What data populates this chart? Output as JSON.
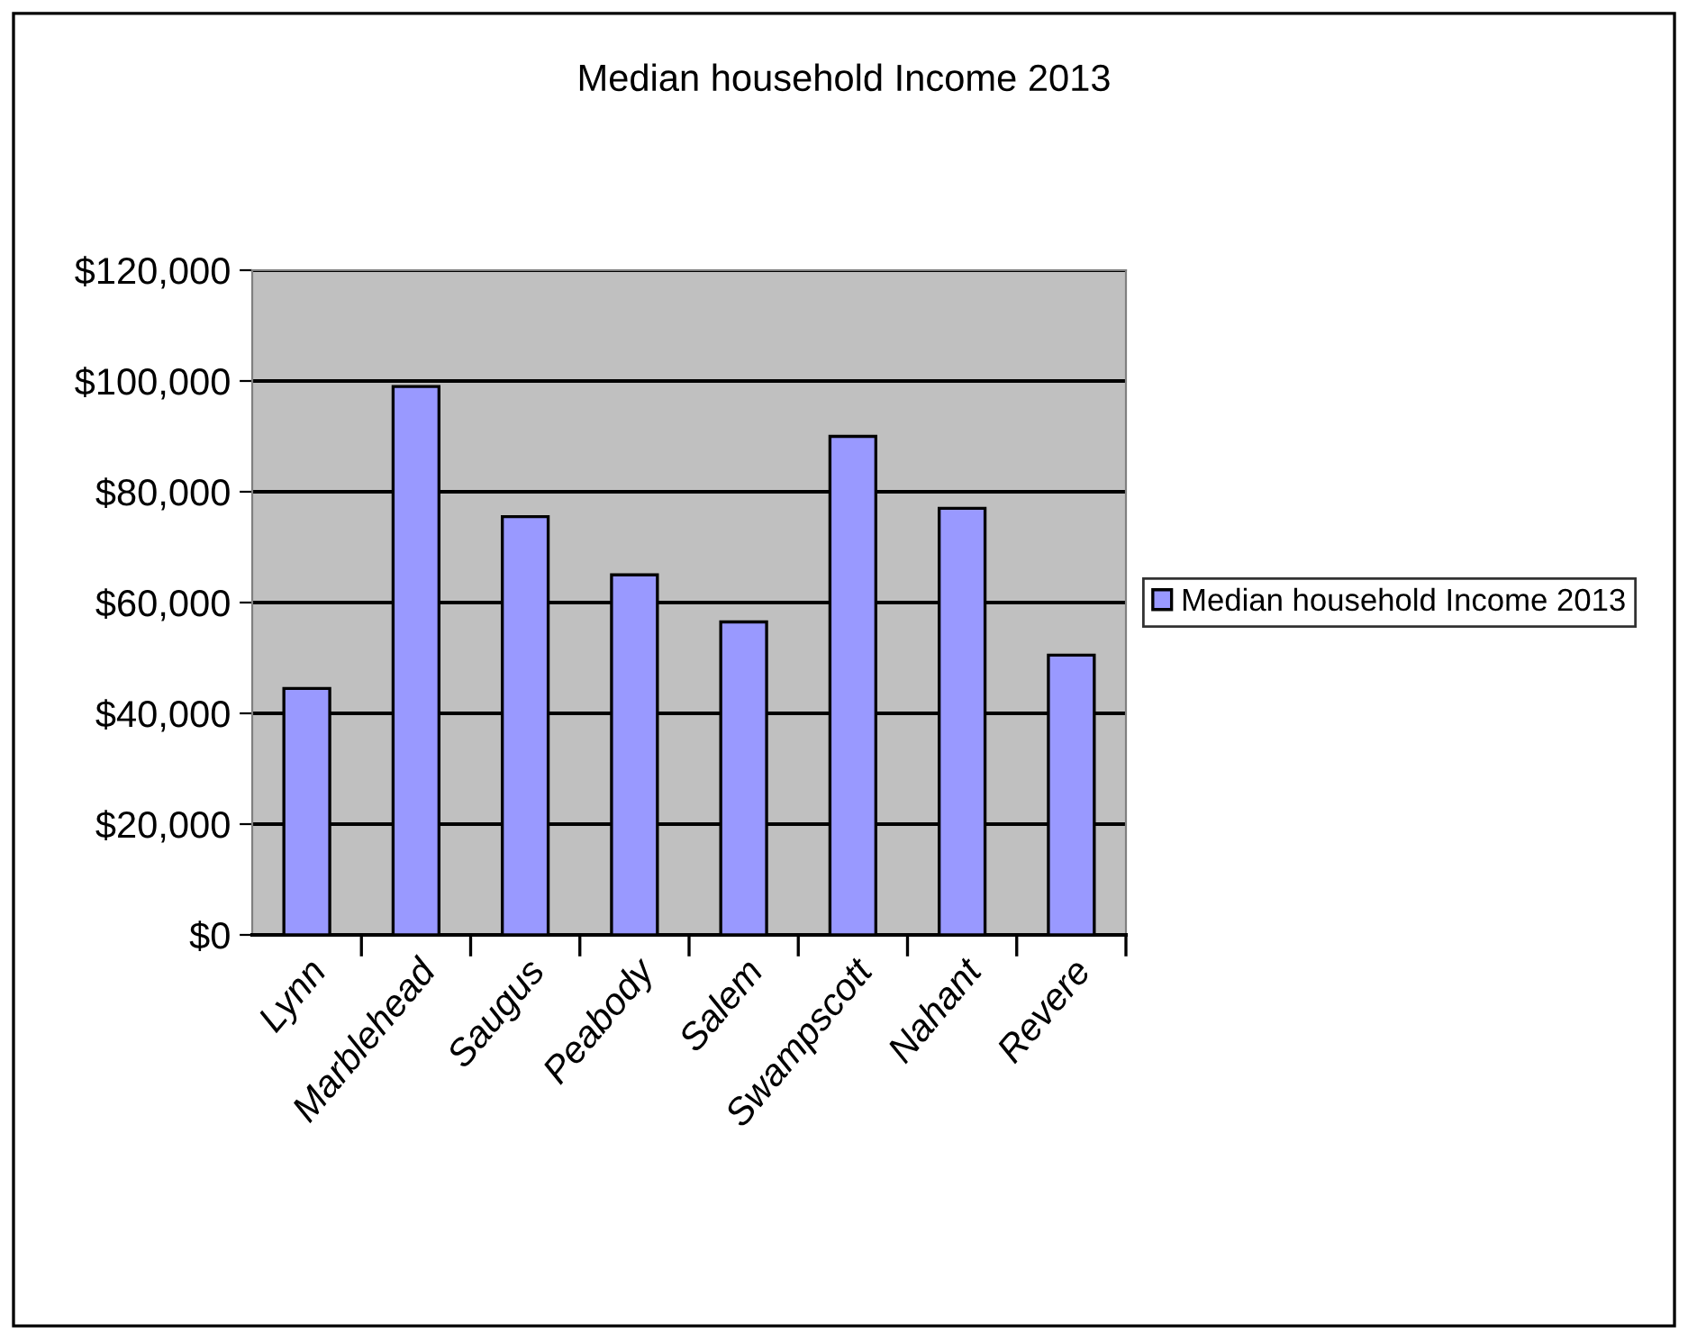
{
  "chart_data": {
    "type": "bar",
    "title": "Median household Income 2013",
    "categories": [
      "Lynn",
      "Marblehead",
      "Saugus",
      "Peabody",
      "Salem",
      "Swampscott",
      "Nahant",
      "Revere"
    ],
    "series": [
      {
        "name": "Median household Income 2013",
        "color": "#9999ff",
        "values": [
          44500,
          99000,
          75500,
          65000,
          56500,
          90000,
          77000,
          50500
        ]
      }
    ],
    "ylim": [
      0,
      120000
    ],
    "yticks": [
      {
        "value": 0,
        "label": "$0"
      },
      {
        "value": 20000,
        "label": "$20,000"
      },
      {
        "value": 40000,
        "label": "$40,000"
      },
      {
        "value": 60000,
        "label": "$60,000"
      },
      {
        "value": 80000,
        "label": "$80,000"
      },
      {
        "value": 100000,
        "label": "$100,000"
      },
      {
        "value": 120000,
        "label": "$120,000"
      }
    ],
    "grid": "y",
    "legend": "right"
  }
}
